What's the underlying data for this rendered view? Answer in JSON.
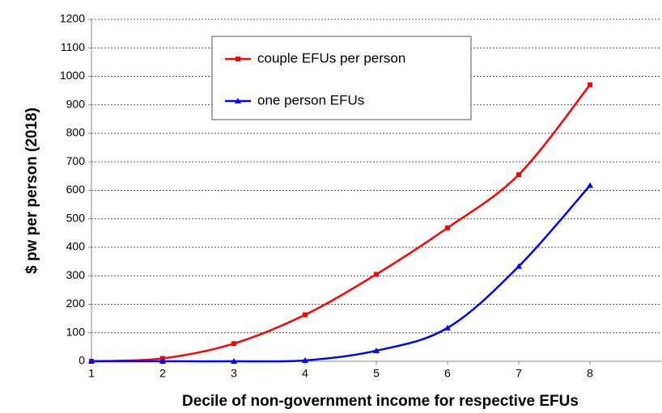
{
  "chart_data": {
    "type": "line",
    "xlabel": "Decile of non-government income for respective EFUs",
    "ylabel": "$ pw per person (2018)",
    "x": [
      1,
      2,
      3,
      4,
      5,
      6,
      7,
      8
    ],
    "series": [
      {
        "name": "couple EFUs per person",
        "color": "#ff0000",
        "marker": "square",
        "values": [
          0,
          10,
          62,
          163,
          305,
          468,
          655,
          970
        ]
      },
      {
        "name": "one person EFUs",
        "color": "#0000ff",
        "marker": "triangle",
        "values": [
          0,
          0,
          0,
          3,
          37,
          117,
          333,
          617
        ]
      }
    ],
    "xlim": [
      1,
      9
    ],
    "xticks": [
      1,
      2,
      3,
      4,
      5,
      6,
      7,
      8
    ],
    "ylim": [
      0,
      1200
    ],
    "yticks": [
      0,
      100,
      200,
      300,
      400,
      500,
      600,
      700,
      800,
      900,
      1000,
      1100,
      1200
    ],
    "grid": true,
    "legend": "top"
  }
}
